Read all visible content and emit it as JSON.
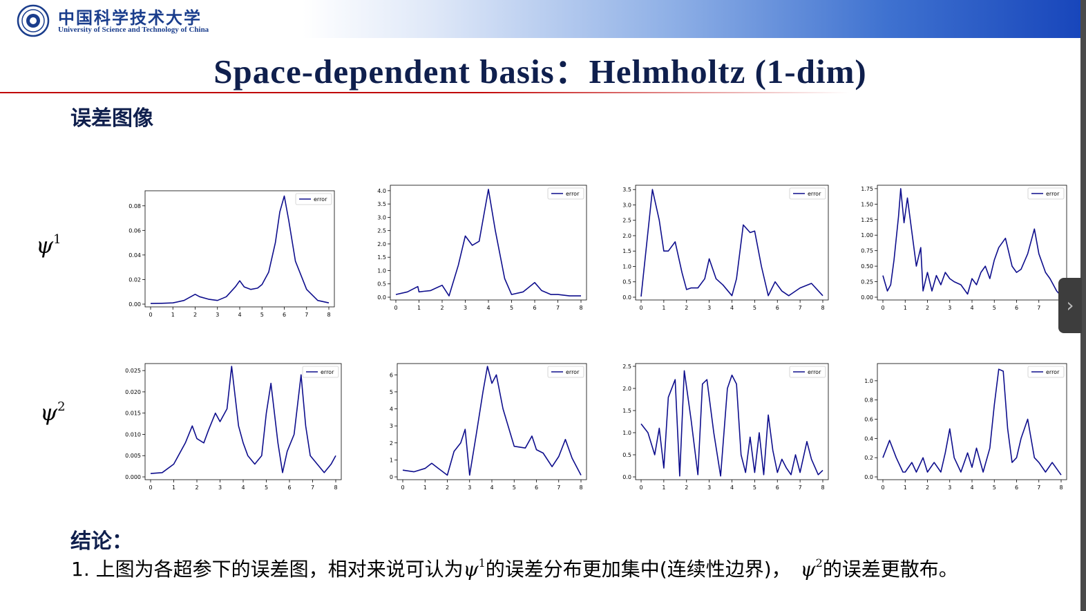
{
  "header": {
    "university_cn": "中国科学技术大学",
    "university_en": "University of Science and Technology of China",
    "title": "Space-dependent basis：Helmholtz (1-dim)"
  },
  "section_heading": "误差图像",
  "row_labels": [
    {
      "symbol": "ψ",
      "sup": "1"
    },
    {
      "symbol": "ψ",
      "sup": "2"
    }
  ],
  "conclusion": {
    "heading": "结论：",
    "line_prefix": "1. 上图为各超参下的误差图，相对来说可认为",
    "psi1_sup": "1",
    "line_mid": "的误差分布更加集中(连续性边界)，",
    "psi2_sup": "2",
    "line_suffix": "的误差更散布。"
  },
  "nav": {
    "next_icon": "chevron-right-icon"
  },
  "colors": {
    "line": "#0d0d8c",
    "title": "#0f1f4d",
    "rule": "#c00000"
  },
  "chart_data": [
    {
      "type": "line",
      "legend": "error",
      "xticks": [
        "0",
        "1",
        "2",
        "3",
        "4",
        "5",
        "6",
        "7",
        "8"
      ],
      "yticks": [
        "0.00",
        "0.02",
        "0.04",
        "0.06",
        "0.08"
      ],
      "ylim": [
        0,
        0.09
      ],
      "x": [
        0,
        0.5,
        1,
        1.5,
        1.9,
        2,
        2.2,
        2.6,
        3,
        3.4,
        3.8,
        4,
        4.2,
        4.5,
        4.8,
        5,
        5.3,
        5.6,
        5.8,
        6,
        6.2,
        6.5,
        7,
        7.5,
        8
      ],
      "y": [
        0.0005,
        0.0007,
        0.001,
        0.003,
        0.007,
        0.008,
        0.006,
        0.004,
        0.003,
        0.006,
        0.014,
        0.019,
        0.014,
        0.012,
        0.013,
        0.016,
        0.026,
        0.05,
        0.075,
        0.088,
        0.068,
        0.035,
        0.012,
        0.003,
        0.001
      ]
    },
    {
      "type": "line",
      "legend": "error",
      "xticks": [
        "0",
        "1",
        "2",
        "3",
        "4",
        "5",
        "6",
        "7",
        "8"
      ],
      "yticks": [
        "0.0",
        "0.5",
        "1.0",
        "1.5",
        "2.0",
        "2.5",
        "3.0",
        "3.5",
        "4.0"
      ],
      "ylim": [
        0,
        4.1
      ],
      "x": [
        0,
        0.5,
        0.95,
        1,
        1.2,
        1.5,
        2,
        2.3,
        2.7,
        3,
        3.3,
        3.6,
        4,
        4.3,
        4.7,
        5,
        5.5,
        6,
        6.3,
        6.7,
        7,
        7.5,
        8
      ],
      "y": [
        0.1,
        0.2,
        0.4,
        0.2,
        0.22,
        0.25,
        0.45,
        0.05,
        1.2,
        2.3,
        1.95,
        2.1,
        4.05,
        2.5,
        0.7,
        0.1,
        0.2,
        0.55,
        0.25,
        0.1,
        0.1,
        0.05,
        0.05
      ]
    },
    {
      "type": "line",
      "legend": "error",
      "xticks": [
        "0",
        "1",
        "2",
        "3",
        "4",
        "5",
        "6",
        "7",
        "8"
      ],
      "yticks": [
        "0.0",
        "0.5",
        "1.0",
        "1.5",
        "2.0",
        "2.5",
        "3.0",
        "3.5"
      ],
      "ylim": [
        0,
        3.55
      ],
      "x": [
        0,
        0.5,
        0.8,
        1,
        1.2,
        1.5,
        1.8,
        2,
        2.2,
        2.5,
        2.8,
        3,
        3.3,
        3.6,
        4,
        4.2,
        4.5,
        4.8,
        5,
        5.3,
        5.6,
        5.9,
        6.2,
        6.5,
        7,
        7.5,
        8
      ],
      "y": [
        0.02,
        3.5,
        2.5,
        1.5,
        1.5,
        1.8,
        0.8,
        0.25,
        0.3,
        0.3,
        0.6,
        1.25,
        0.6,
        0.4,
        0.05,
        0.6,
        2.35,
        2.1,
        2.15,
        1.0,
        0.05,
        0.5,
        0.2,
        0.05,
        0.3,
        0.45,
        0.05
      ]
    },
    {
      "type": "line",
      "legend": "error",
      "xticks": [
        "0",
        "1",
        "2",
        "3",
        "4",
        "5",
        "6",
        "7",
        "8"
      ],
      "yticks": [
        "0.00",
        "0.25",
        "0.50",
        "0.75",
        "1.00",
        "1.25",
        "1.50",
        "1.75"
      ],
      "ylim": [
        0,
        1.76
      ],
      "x": [
        0,
        0.2,
        0.35,
        0.5,
        0.7,
        0.8,
        0.95,
        1.1,
        1.5,
        1.7,
        1.8,
        2,
        2.2,
        2.4,
        2.6,
        2.8,
        3,
        3.2,
        3.5,
        3.8,
        4,
        4.2,
        4.4,
        4.6,
        4.8,
        5,
        5.2,
        5.5,
        5.8,
        6,
        6.2,
        6.5,
        6.8,
        7,
        7.3,
        7.5,
        7.8,
        8
      ],
      "y": [
        0.35,
        0.1,
        0.2,
        0.6,
        1.3,
        1.75,
        1.2,
        1.6,
        0.5,
        0.8,
        0.1,
        0.4,
        0.1,
        0.35,
        0.2,
        0.4,
        0.3,
        0.25,
        0.2,
        0.05,
        0.3,
        0.2,
        0.4,
        0.5,
        0.3,
        0.6,
        0.8,
        0.95,
        0.5,
        0.4,
        0.45,
        0.7,
        1.1,
        0.7,
        0.4,
        0.3,
        0.1,
        0.02
      ]
    },
    {
      "type": "line",
      "legend": "error",
      "xticks": [
        "0",
        "1",
        "2",
        "3",
        "4",
        "5",
        "6",
        "7",
        "8"
      ],
      "yticks": [
        "0.000",
        "0.005",
        "0.010",
        "0.015",
        "0.020",
        "0.025"
      ],
      "ylim": [
        0,
        0.026
      ],
      "x": [
        0,
        0.5,
        1,
        1.5,
        1.8,
        2,
        2.3,
        2.5,
        2.8,
        3,
        3.3,
        3.5,
        3.8,
        4,
        4.2,
        4.5,
        4.8,
        5,
        5.2,
        5.5,
        5.7,
        5.9,
        6.2,
        6.5,
        6.7,
        6.9,
        7.2,
        7.5,
        7.8,
        8
      ],
      "y": [
        0.0008,
        0.001,
        0.003,
        0.008,
        0.012,
        0.009,
        0.008,
        0.011,
        0.015,
        0.013,
        0.016,
        0.026,
        0.012,
        0.008,
        0.005,
        0.003,
        0.005,
        0.015,
        0.022,
        0.008,
        0.001,
        0.006,
        0.01,
        0.024,
        0.012,
        0.005,
        0.003,
        0.001,
        0.003,
        0.005
      ]
    },
    {
      "type": "line",
      "legend": "error",
      "xticks": [
        "0",
        "1",
        "2",
        "3",
        "4",
        "5",
        "6",
        "7",
        "8"
      ],
      "yticks": [
        "0",
        "1",
        "2",
        "3",
        "4",
        "5",
        "6"
      ],
      "ylim": [
        0,
        6.5
      ],
      "x": [
        0,
        0.5,
        1,
        1.3,
        1.6,
        2,
        2.3,
        2.6,
        2.8,
        3,
        3.3,
        3.6,
        3.8,
        4,
        4.2,
        4.5,
        5,
        5.5,
        5.8,
        6,
        6.3,
        6.7,
        7,
        7.3,
        7.6,
        8
      ],
      "y": [
        0.4,
        0.3,
        0.5,
        0.8,
        0.5,
        0.1,
        1.5,
        2.0,
        2.8,
        0.1,
        2.5,
        5.0,
        6.5,
        5.5,
        6.0,
        4.0,
        1.8,
        1.7,
        2.4,
        1.6,
        1.4,
        0.6,
        1.2,
        2.2,
        1.1,
        0.1
      ]
    },
    {
      "type": "line",
      "legend": "error",
      "xticks": [
        "0",
        "1",
        "2",
        "3",
        "4",
        "5",
        "6",
        "7",
        "8"
      ],
      "yticks": [
        "0.0",
        "0.5",
        "1.0",
        "1.5",
        "2.0",
        "2.5"
      ],
      "ylim": [
        0,
        2.5
      ],
      "x": [
        0,
        0.3,
        0.6,
        0.8,
        1,
        1.2,
        1.5,
        1.7,
        1.9,
        2.2,
        2.5,
        2.7,
        2.9,
        3.2,
        3.5,
        3.8,
        4,
        4.2,
        4.4,
        4.6,
        4.8,
        5,
        5.2,
        5.4,
        5.6,
        5.8,
        6,
        6.2,
        6.4,
        6.6,
        6.8,
        7,
        7.3,
        7.5,
        7.8,
        8
      ],
      "y": [
        1.2,
        1.0,
        0.5,
        1.1,
        0.2,
        1.8,
        2.2,
        0.02,
        2.4,
        1.3,
        0.05,
        2.1,
        2.2,
        1.0,
        0.02,
        2.0,
        2.3,
        2.1,
        0.5,
        0.1,
        0.9,
        0.1,
        1.0,
        0.05,
        1.4,
        0.6,
        0.1,
        0.4,
        0.2,
        0.05,
        0.5,
        0.1,
        0.8,
        0.4,
        0.05,
        0.15
      ]
    },
    {
      "type": "line",
      "legend": "error",
      "xticks": [
        "0",
        "1",
        "2",
        "3",
        "4",
        "5",
        "6",
        "7",
        "8"
      ],
      "yticks": [
        "0.0",
        "0.2",
        "0.4",
        "0.6",
        "0.8",
        "1.0"
      ],
      "ylim": [
        0,
        1.15
      ],
      "x": [
        0,
        0.3,
        0.6,
        0.9,
        1,
        1.3,
        1.5,
        1.8,
        2,
        2.3,
        2.6,
        2.8,
        3,
        3.2,
        3.5,
        3.8,
        4,
        4.2,
        4.5,
        4.8,
        5,
        5.2,
        5.4,
        5.6,
        5.8,
        6,
        6.2,
        6.5,
        6.8,
        7,
        7.3,
        7.6,
        8
      ],
      "y": [
        0.2,
        0.38,
        0.2,
        0.05,
        0.05,
        0.15,
        0.05,
        0.2,
        0.05,
        0.15,
        0.05,
        0.25,
        0.5,
        0.2,
        0.05,
        0.25,
        0.1,
        0.3,
        0.05,
        0.3,
        0.75,
        1.12,
        1.1,
        0.5,
        0.15,
        0.2,
        0.4,
        0.6,
        0.2,
        0.15,
        0.05,
        0.15,
        0.02
      ]
    }
  ]
}
